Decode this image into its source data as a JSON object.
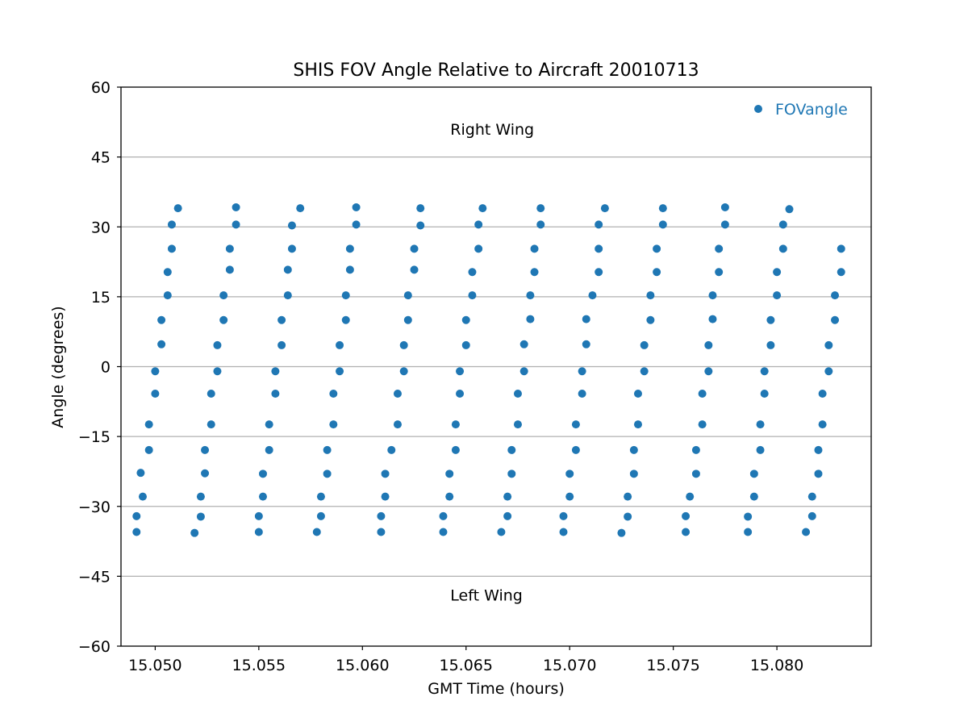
{
  "chart_data": {
    "type": "scatter",
    "title": "SHIS FOV Angle Relative to Aircraft 20010713",
    "xlabel": "GMT Time (hours)",
    "ylabel": "Angle (degrees)",
    "xlim": [
      15.04835,
      15.08455
    ],
    "ylim": [
      -60,
      60
    ],
    "xticks": [
      15.05,
      15.055,
      15.06,
      15.065,
      15.07,
      15.075,
      15.08
    ],
    "xtick_labels": [
      "15.050",
      "15.055",
      "15.060",
      "15.065",
      "15.070",
      "15.075",
      "15.080"
    ],
    "yticks": [
      -60,
      -45,
      -30,
      -15,
      0,
      15,
      30,
      45,
      60
    ],
    "ytick_labels": [
      "−60",
      "−45",
      "−30",
      "−15",
      "0",
      "15",
      "30",
      "45",
      "60"
    ],
    "grid": "horizontal",
    "legend_position": "top-right",
    "color": "#1f77b4",
    "annotations": [
      {
        "text": "Right Wing",
        "x": 15.0658,
        "y": 51
      },
      {
        "text": "Left Wing",
        "x": 15.0658,
        "y": -49
      }
    ],
    "series": [
      {
        "name": "FOVangle",
        "points": [
          [
            15.0491,
            -35.5
          ],
          [
            15.0491,
            -32.1
          ],
          [
            15.0494,
            -27.9
          ],
          [
            15.0493,
            -22.8
          ],
          [
            15.0497,
            -17.9
          ],
          [
            15.0497,
            -12.4
          ],
          [
            15.05,
            -5.8
          ],
          [
            15.05,
            -1.0
          ],
          [
            15.0503,
            4.8
          ],
          [
            15.0503,
            10.0
          ],
          [
            15.0506,
            15.3
          ],
          [
            15.0506,
            20.3
          ],
          [
            15.0508,
            25.3
          ],
          [
            15.0508,
            30.5
          ],
          [
            15.0511,
            34.0
          ],
          [
            15.0519,
            -35.7
          ],
          [
            15.0522,
            -32.2
          ],
          [
            15.0522,
            -27.9
          ],
          [
            15.0524,
            -22.9
          ],
          [
            15.0524,
            -17.9
          ],
          [
            15.0527,
            -12.4
          ],
          [
            15.0527,
            -5.8
          ],
          [
            15.053,
            -1.0
          ],
          [
            15.053,
            4.6
          ],
          [
            15.0533,
            10.0
          ],
          [
            15.0533,
            15.3
          ],
          [
            15.0536,
            20.8
          ],
          [
            15.0536,
            25.3
          ],
          [
            15.0539,
            30.5
          ],
          [
            15.0539,
            34.2
          ],
          [
            15.055,
            -35.5
          ],
          [
            15.055,
            -32.1
          ],
          [
            15.0552,
            -27.9
          ],
          [
            15.0552,
            -23.0
          ],
          [
            15.0555,
            -17.9
          ],
          [
            15.0555,
            -12.4
          ],
          [
            15.0558,
            -5.8
          ],
          [
            15.0558,
            -1.0
          ],
          [
            15.0561,
            4.6
          ],
          [
            15.0561,
            10.0
          ],
          [
            15.0564,
            15.3
          ],
          [
            15.0564,
            20.8
          ],
          [
            15.0566,
            25.3
          ],
          [
            15.0566,
            30.3
          ],
          [
            15.057,
            34.0
          ],
          [
            15.0578,
            -35.5
          ],
          [
            15.058,
            -32.1
          ],
          [
            15.058,
            -27.9
          ],
          [
            15.0583,
            -23.0
          ],
          [
            15.0583,
            -17.9
          ],
          [
            15.0586,
            -12.4
          ],
          [
            15.0586,
            -5.8
          ],
          [
            15.0589,
            -1.0
          ],
          [
            15.0589,
            4.6
          ],
          [
            15.0592,
            10.0
          ],
          [
            15.0592,
            15.3
          ],
          [
            15.0594,
            20.8
          ],
          [
            15.0594,
            25.3
          ],
          [
            15.0597,
            30.5
          ],
          [
            15.0597,
            34.2
          ],
          [
            15.0609,
            -35.5
          ],
          [
            15.0609,
            -32.1
          ],
          [
            15.0611,
            -27.9
          ],
          [
            15.0611,
            -23.0
          ],
          [
            15.0614,
            -17.9
          ],
          [
            15.0617,
            -12.4
          ],
          [
            15.0617,
            -5.8
          ],
          [
            15.062,
            -1.0
          ],
          [
            15.062,
            4.6
          ],
          [
            15.0622,
            10.0
          ],
          [
            15.0622,
            15.3
          ],
          [
            15.0625,
            20.8
          ],
          [
            15.0625,
            25.3
          ],
          [
            15.0628,
            30.3
          ],
          [
            15.0628,
            34.0
          ],
          [
            15.0639,
            -35.5
          ],
          [
            15.0639,
            -32.1
          ],
          [
            15.0642,
            -27.9
          ],
          [
            15.0642,
            -23.0
          ],
          [
            15.0645,
            -17.9
          ],
          [
            15.0645,
            -12.4
          ],
          [
            15.0647,
            -5.8
          ],
          [
            15.0647,
            -1.0
          ],
          [
            15.065,
            4.6
          ],
          [
            15.065,
            10.0
          ],
          [
            15.0653,
            15.3
          ],
          [
            15.0653,
            20.3
          ],
          [
            15.0656,
            25.3
          ],
          [
            15.0656,
            30.5
          ],
          [
            15.0658,
            34.0
          ],
          [
            15.0667,
            -35.5
          ],
          [
            15.067,
            -32.1
          ],
          [
            15.067,
            -27.9
          ],
          [
            15.0672,
            -23.0
          ],
          [
            15.0672,
            -17.9
          ],
          [
            15.0675,
            -12.4
          ],
          [
            15.0675,
            -5.8
          ],
          [
            15.0678,
            -1.0
          ],
          [
            15.0678,
            4.8
          ],
          [
            15.0681,
            10.2
          ],
          [
            15.0681,
            15.3
          ],
          [
            15.0683,
            20.3
          ],
          [
            15.0683,
            25.3
          ],
          [
            15.0686,
            30.5
          ],
          [
            15.0686,
            34.0
          ],
          [
            15.0697,
            -35.5
          ],
          [
            15.0697,
            -32.1
          ],
          [
            15.07,
            -27.9
          ],
          [
            15.07,
            -23.0
          ],
          [
            15.0703,
            -17.9
          ],
          [
            15.0703,
            -12.4
          ],
          [
            15.0706,
            -5.8
          ],
          [
            15.0706,
            -1.0
          ],
          [
            15.0708,
            4.8
          ],
          [
            15.0708,
            10.2
          ],
          [
            15.0711,
            15.3
          ],
          [
            15.0714,
            20.3
          ],
          [
            15.0714,
            25.3
          ],
          [
            15.0714,
            30.5
          ],
          [
            15.0717,
            34.0
          ],
          [
            15.0725,
            -35.7
          ],
          [
            15.0728,
            -32.2
          ],
          [
            15.0728,
            -27.9
          ],
          [
            15.0731,
            -23.0
          ],
          [
            15.0731,
            -17.9
          ],
          [
            15.0733,
            -12.4
          ],
          [
            15.0733,
            -5.8
          ],
          [
            15.0736,
            -1.0
          ],
          [
            15.0736,
            4.6
          ],
          [
            15.0739,
            10.0
          ],
          [
            15.0739,
            15.3
          ],
          [
            15.0742,
            20.3
          ],
          [
            15.0742,
            25.3
          ],
          [
            15.0745,
            30.5
          ],
          [
            15.0745,
            34.0
          ],
          [
            15.0756,
            -35.5
          ],
          [
            15.0756,
            -32.1
          ],
          [
            15.0758,
            -27.9
          ],
          [
            15.0761,
            -23.0
          ],
          [
            15.0761,
            -17.9
          ],
          [
            15.0764,
            -12.4
          ],
          [
            15.0764,
            -5.8
          ],
          [
            15.0767,
            -1.0
          ],
          [
            15.0767,
            4.6
          ],
          [
            15.0769,
            10.2
          ],
          [
            15.0769,
            15.3
          ],
          [
            15.0772,
            20.3
          ],
          [
            15.0772,
            25.3
          ],
          [
            15.0775,
            30.5
          ],
          [
            15.0775,
            34.2
          ],
          [
            15.0786,
            -35.5
          ],
          [
            15.0786,
            -32.2
          ],
          [
            15.0789,
            -27.9
          ],
          [
            15.0789,
            -23.0
          ],
          [
            15.0792,
            -17.9
          ],
          [
            15.0792,
            -12.4
          ],
          [
            15.0794,
            -5.8
          ],
          [
            15.0794,
            -1.0
          ],
          [
            15.0797,
            4.6
          ],
          [
            15.0797,
            10.0
          ],
          [
            15.08,
            15.3
          ],
          [
            15.08,
            20.3
          ],
          [
            15.0803,
            25.3
          ],
          [
            15.0803,
            30.5
          ],
          [
            15.0806,
            33.8
          ],
          [
            15.0814,
            -35.5
          ],
          [
            15.0817,
            -32.1
          ],
          [
            15.0817,
            -27.9
          ],
          [
            15.082,
            -23.0
          ],
          [
            15.082,
            -17.9
          ],
          [
            15.0822,
            -12.4
          ],
          [
            15.0822,
            -5.8
          ],
          [
            15.0825,
            -1.0
          ],
          [
            15.0825,
            4.6
          ],
          [
            15.0828,
            10.0
          ],
          [
            15.0828,
            15.3
          ],
          [
            15.0831,
            20.3
          ],
          [
            15.0831,
            25.3
          ]
        ]
      }
    ]
  }
}
